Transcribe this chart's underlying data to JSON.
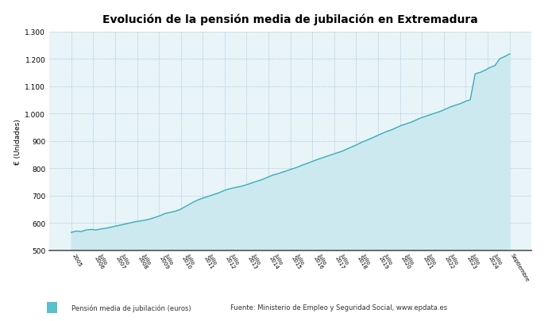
{
  "title": "Evolución de la pensión media de jubilación en Extremadura",
  "ylabel": "€ (Unidades)",
  "ylim": [
    500,
    1300
  ],
  "yticks": [
    500,
    600,
    700,
    800,
    900,
    1000,
    1100,
    1200,
    1300
  ],
  "line_color": "#3aabba",
  "fill_color": "#cce9f0",
  "background_color": "#e8f4f8",
  "legend_label": "Pensión media de jubilación (euros)",
  "legend_color": "#5bbfcc",
  "source_text": "Fuente: Ministerio de Empleo y Seguridad Social, www.epdata.es",
  "x_labels": [
    "2005",
    "Julio\n2006",
    "Julio\n2007",
    "Julio\n2008",
    "Julio\n2009",
    "Julio\n2010",
    "Julio\n2011",
    "Julio\n2012",
    "Julio\n2013",
    "Julio\n2014",
    "Julio\n2015",
    "Julio\n2016",
    "Julio\n2017",
    "Julio\n2018",
    "Julio\n2019",
    "Julio\n2020",
    "Julio\n2021",
    "Julio\n2022",
    "Julio\n2023",
    "Julio\n2024",
    "Septiembre"
  ],
  "values": [
    565,
    570,
    568,
    574,
    576,
    574,
    578,
    580,
    584,
    588,
    592,
    596,
    600,
    604,
    607,
    610,
    614,
    620,
    626,
    634,
    638,
    642,
    648,
    658,
    668,
    678,
    686,
    692,
    698,
    704,
    710,
    718,
    724,
    728,
    732,
    736,
    742,
    748,
    754,
    760,
    768,
    775,
    780,
    786,
    792,
    798,
    804,
    812,
    818,
    825,
    832,
    838,
    844,
    850,
    856,
    862,
    870,
    878,
    886,
    895,
    902,
    910,
    918,
    926,
    934,
    940,
    948,
    956,
    962,
    968,
    976,
    984,
    990,
    996,
    1002,
    1008,
    1016,
    1024,
    1030,
    1036,
    1044,
    1050,
    1145,
    1150,
    1158,
    1168,
    1175,
    1200,
    1208,
    1218
  ]
}
